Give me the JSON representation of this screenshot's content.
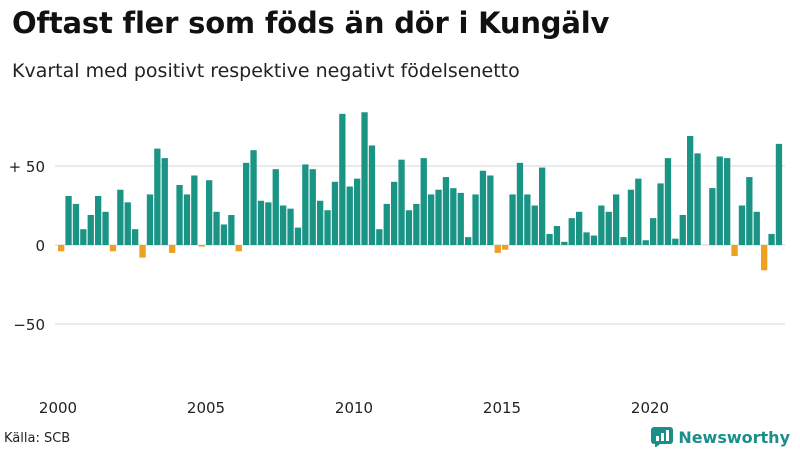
{
  "header": {
    "title": "Oftast fler som föds än dör i Kungälv",
    "subtitle": "Kvartal med positivt respektive negativt födelsenetto"
  },
  "footer": {
    "source": "Källa: SCB",
    "brand": "Newsworthy"
  },
  "colors": {
    "positive": "#1a9485",
    "negative": "#f0a020",
    "grid": "#dddddd",
    "brand": "#1a8f8a"
  },
  "chart_data": {
    "type": "bar",
    "ylim": [
      -100,
      90
    ],
    "y_ticks": [
      {
        "value": 50,
        "label": "+ 50"
      },
      {
        "value": 0,
        "label": "0"
      },
      {
        "value": -50,
        "label": "−50"
      }
    ],
    "x_ticks": [
      {
        "year": 2000,
        "label": "2000"
      },
      {
        "year": 2005,
        "label": "2005"
      },
      {
        "year": 2010,
        "label": "2010"
      },
      {
        "year": 2015,
        "label": "2015"
      },
      {
        "year": 2020,
        "label": "2020"
      }
    ],
    "start_year": 2000,
    "grid": true,
    "legend": "none",
    "values": [
      -4,
      31,
      26,
      10,
      19,
      31,
      21,
      -4,
      35,
      27,
      10,
      -8,
      32,
      61,
      55,
      -5,
      38,
      32,
      44,
      -1,
      41,
      21,
      13,
      19,
      -4,
      52,
      60,
      28,
      27,
      48,
      25,
      23,
      11,
      51,
      48,
      28,
      22,
      40,
      83,
      37,
      42,
      84,
      63,
      10,
      26,
      40,
      54,
      22,
      26,
      55,
      32,
      35,
      43,
      36,
      33,
      5,
      32,
      47,
      44,
      -5,
      -3,
      32,
      52,
      32,
      25,
      49,
      7,
      12,
      2,
      17,
      21,
      8,
      6,
      25,
      21,
      32,
      5,
      35,
      42,
      3,
      17,
      39,
      55,
      4,
      19,
      69,
      58,
      0,
      36,
      56,
      55,
      -7,
      25,
      43,
      21,
      -16,
      7,
      64
    ]
  }
}
